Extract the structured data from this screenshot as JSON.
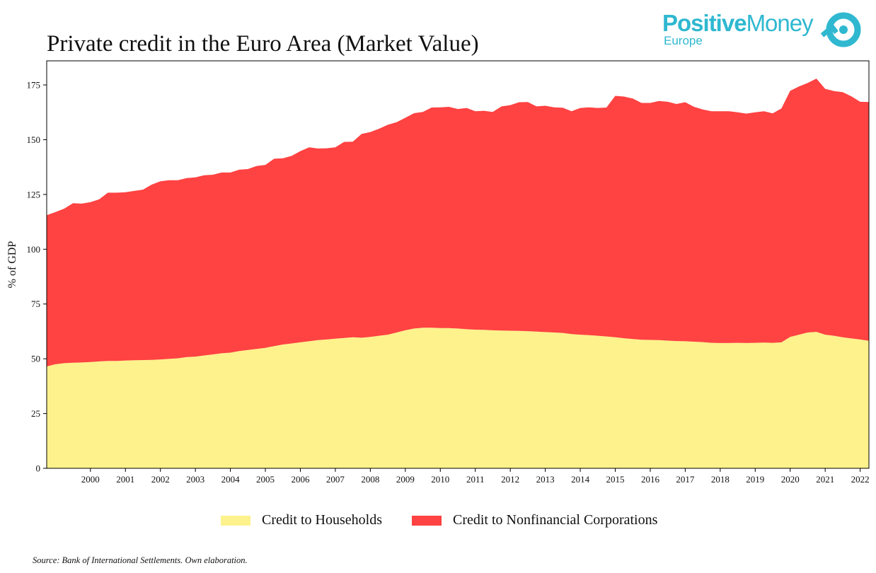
{
  "logo": {
    "brand_bold": "Positive",
    "brand_regular": "Money",
    "sub": "Europe",
    "color": "#2fb8d0",
    "icon": "positive-money-logo-icon"
  },
  "source": "Source: Bank of International Settlements. Own elaboration.",
  "chart_data": {
    "type": "area",
    "stacked": true,
    "title": "Private credit in the Euro Area (Market Value)",
    "xlabel": "",
    "ylabel": "% of GDP",
    "xlim": [
      1999.25,
      2022.75
    ],
    "ylim": [
      0,
      186
    ],
    "yticks": [
      0,
      25,
      50,
      75,
      100,
      125,
      150,
      175
    ],
    "xticks": [
      "2000",
      "2001",
      "2002",
      "2003",
      "2004",
      "2005",
      "2006",
      "2007",
      "2008",
      "2009",
      "2010",
      "2011",
      "2012",
      "2013",
      "2014",
      "2015",
      "2016",
      "2017",
      "2018",
      "2019",
      "2020",
      "2021",
      "2022"
    ],
    "grid": false,
    "legend_position": "bottom",
    "x_start": "1999-Q2",
    "x_step": "quarter",
    "series": [
      {
        "name": "Credit to Households",
        "color": "#fdf28c",
        "values": [
          46.5,
          47.5,
          48.0,
          48.2,
          48.3,
          48.5,
          48.8,
          49.0,
          49.0,
          49.2,
          49.3,
          49.4,
          49.5,
          49.7,
          50.0,
          50.2,
          50.8,
          51.0,
          51.5,
          52.0,
          52.5,
          52.8,
          53.5,
          54.0,
          54.5,
          55.0,
          55.8,
          56.5,
          57.0,
          57.5,
          58.0,
          58.5,
          58.8,
          59.2,
          59.5,
          59.8,
          59.6,
          60.0,
          60.5,
          61.0,
          62.0,
          63.0,
          63.8,
          64.2,
          64.2,
          64.0,
          64.0,
          63.8,
          63.5,
          63.3,
          63.2,
          63.0,
          62.9,
          62.8,
          62.7,
          62.6,
          62.4,
          62.2,
          62.0,
          61.8,
          61.3,
          61.0,
          60.8,
          60.5,
          60.2,
          59.8,
          59.4,
          59.0,
          58.7,
          58.6,
          58.5,
          58.3,
          58.1,
          58.0,
          57.8,
          57.6,
          57.3,
          57.2,
          57.2,
          57.3,
          57.2,
          57.3,
          57.4,
          57.3,
          57.5,
          60.0,
          61.0,
          62.0,
          62.3,
          61.0,
          60.5,
          59.8,
          59.3,
          58.8,
          58.2
        ]
      },
      {
        "name": "Credit to Nonfinancial Corporations",
        "color": "#ff4242",
        "values": [
          69.0,
          69.5,
          70.5,
          72.8,
          72.5,
          73.0,
          74.0,
          76.8,
          76.8,
          76.8,
          77.3,
          77.8,
          80.0,
          81.3,
          81.5,
          81.3,
          81.7,
          81.8,
          82.3,
          82.0,
          82.5,
          82.2,
          82.8,
          82.6,
          83.5,
          83.5,
          85.5,
          85.0,
          85.6,
          87.3,
          88.5,
          87.5,
          87.3,
          87.3,
          89.5,
          89.3,
          93.0,
          93.5,
          94.5,
          95.8,
          96.0,
          97.0,
          98.3,
          98.5,
          100.5,
          100.8,
          101.0,
          100.2,
          101.0,
          99.7,
          100.0,
          99.7,
          102.3,
          103.0,
          104.4,
          104.6,
          102.8,
          103.3,
          102.8,
          102.8,
          101.7,
          103.5,
          104.0,
          104.0,
          104.5,
          110.2,
          110.3,
          109.8,
          108.1,
          108.2,
          109.2,
          109.0,
          108.2,
          109.1,
          107.2,
          106.2,
          105.7,
          105.8,
          105.8,
          105.2,
          104.7,
          105.2,
          105.6,
          104.7,
          106.8,
          112.3,
          113.3,
          113.9,
          115.6,
          112.2,
          111.7,
          111.9,
          110.5,
          108.5,
          109.0
        ]
      }
    ]
  }
}
